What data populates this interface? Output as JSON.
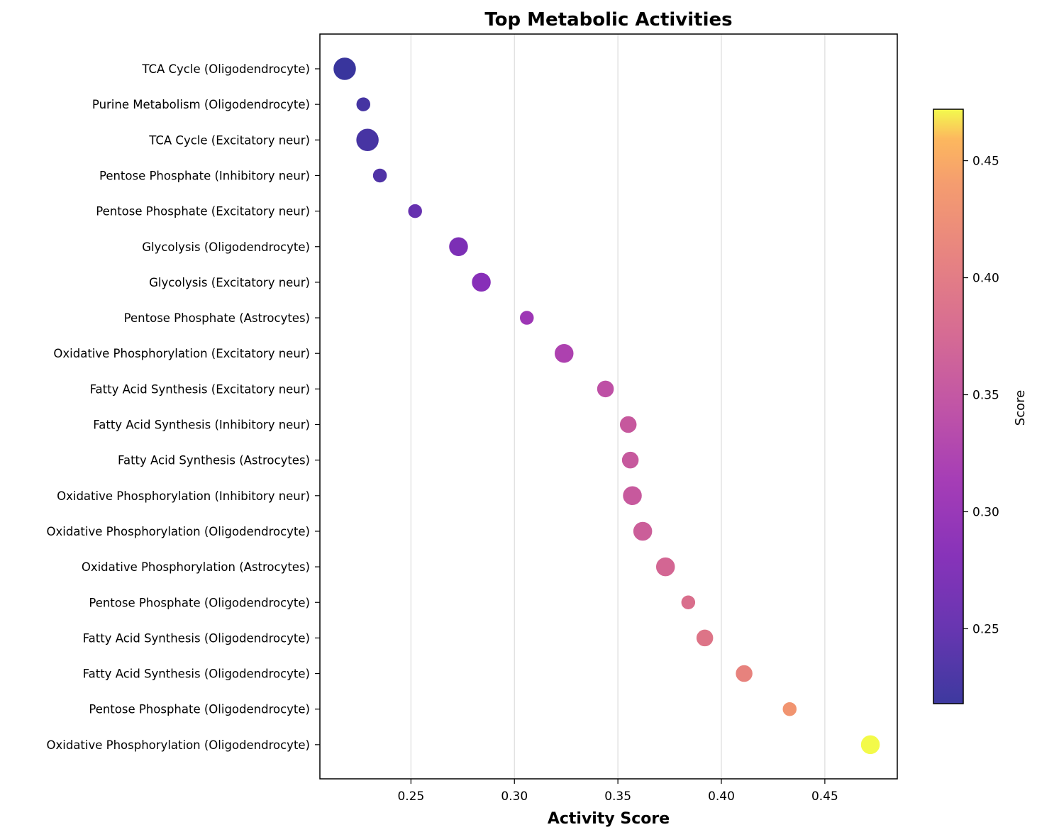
{
  "chart_data": {
    "type": "scatter",
    "title": "Top Metabolic Activities",
    "xlabel": "Activity Score",
    "ylabel": "",
    "xlim": [
      0.206,
      0.485
    ],
    "xticks": [
      0.25,
      0.3,
      0.35,
      0.4,
      0.45
    ],
    "xtick_labels": [
      "0.25",
      "0.30",
      "0.35",
      "0.40",
      "0.45"
    ],
    "grid": "vertical",
    "colormap": "plasma",
    "colorbar": {
      "label": "Score",
      "range": [
        0.218,
        0.472
      ],
      "ticks": [
        0.25,
        0.3,
        0.35,
        0.4,
        0.45
      ],
      "tick_labels": [
        "0.25",
        "0.30",
        "0.35",
        "0.40",
        "0.45"
      ],
      "location": "right"
    },
    "points": [
      {
        "label": "TCA Cycle (Oligodendrocyte)",
        "x": 0.218,
        "size": 3
      },
      {
        "label": "Purine Metabolism (Oligodendrocyte)",
        "x": 0.227,
        "size": 1
      },
      {
        "label": "TCA Cycle (Excitatory neur)",
        "x": 0.229,
        "size": 3
      },
      {
        "label": "Pentose Phosphate (Inhibitory neur)",
        "x": 0.235,
        "size": 1
      },
      {
        "label": "Pentose Phosphate (Excitatory neur)",
        "x": 0.252,
        "size": 1
      },
      {
        "label": "Glycolysis (Oligodendrocyte)",
        "x": 0.273,
        "size": 2
      },
      {
        "label": "Glycolysis (Excitatory neur)",
        "x": 0.284,
        "size": 2
      },
      {
        "label": "Pentose Phosphate (Astrocytes)",
        "x": 0.306,
        "size": 1
      },
      {
        "label": "Oxidative Phosphorylation (Excitatory neur)",
        "x": 0.324,
        "size": 2
      },
      {
        "label": "Fatty Acid Synthesis (Excitatory neur)",
        "x": 0.344,
        "size": 1.5
      },
      {
        "label": "Fatty Acid Synthesis (Inhibitory neur)",
        "x": 0.355,
        "size": 1.5
      },
      {
        "label": "Fatty Acid Synthesis (Astrocytes)",
        "x": 0.356,
        "size": 1.5
      },
      {
        "label": "Oxidative Phosphorylation (Inhibitory neur)",
        "x": 0.357,
        "size": 2
      },
      {
        "label": "Oxidative Phosphorylation (Oligodendrocyte)",
        "x": 0.362,
        "size": 2
      },
      {
        "label": "Oxidative Phosphorylation (Astrocytes)",
        "x": 0.373,
        "size": 2
      },
      {
        "label": "Pentose Phosphate (Oligodendrocyte)",
        "x": 0.384,
        "size": 1
      },
      {
        "label": "Fatty Acid Synthesis (Oligodendrocyte)",
        "x": 0.392,
        "size": 1.5
      },
      {
        "label": "Fatty Acid Synthesis (Oligodendrocyte)",
        "x": 0.411,
        "size": 1.5
      },
      {
        "label": "Pentose Phosphate (Oligodendrocyte)",
        "x": 0.433,
        "size": 1
      },
      {
        "label": "Oxidative Phosphorylation (Oligodendrocyte)",
        "x": 0.472,
        "size": 2
      }
    ]
  }
}
